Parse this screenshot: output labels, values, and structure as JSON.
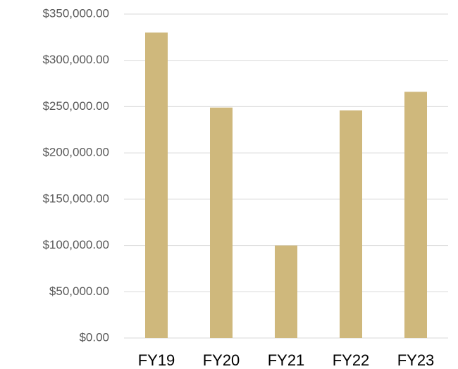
{
  "chart_data": {
    "type": "bar",
    "categories": [
      "FY19",
      "FY20",
      "FY21",
      "FY22",
      "FY23"
    ],
    "values": [
      330000,
      249000,
      100000,
      246000,
      266000
    ],
    "color": "#cfb87c",
    "ylim": [
      0,
      350000
    ],
    "yticks": [
      {
        "value": 0,
        "label": "$0.00"
      },
      {
        "value": 50000,
        "label": "$50,000.00"
      },
      {
        "value": 100000,
        "label": "$100,000.00"
      },
      {
        "value": 150000,
        "label": "$150,000.00"
      },
      {
        "value": 200000,
        "label": "$200,000.00"
      },
      {
        "value": 250000,
        "label": "$250,000.00"
      },
      {
        "value": 300000,
        "label": "$300,000.00"
      },
      {
        "value": 350000,
        "label": "$350,000.00"
      }
    ],
    "grid": true
  }
}
